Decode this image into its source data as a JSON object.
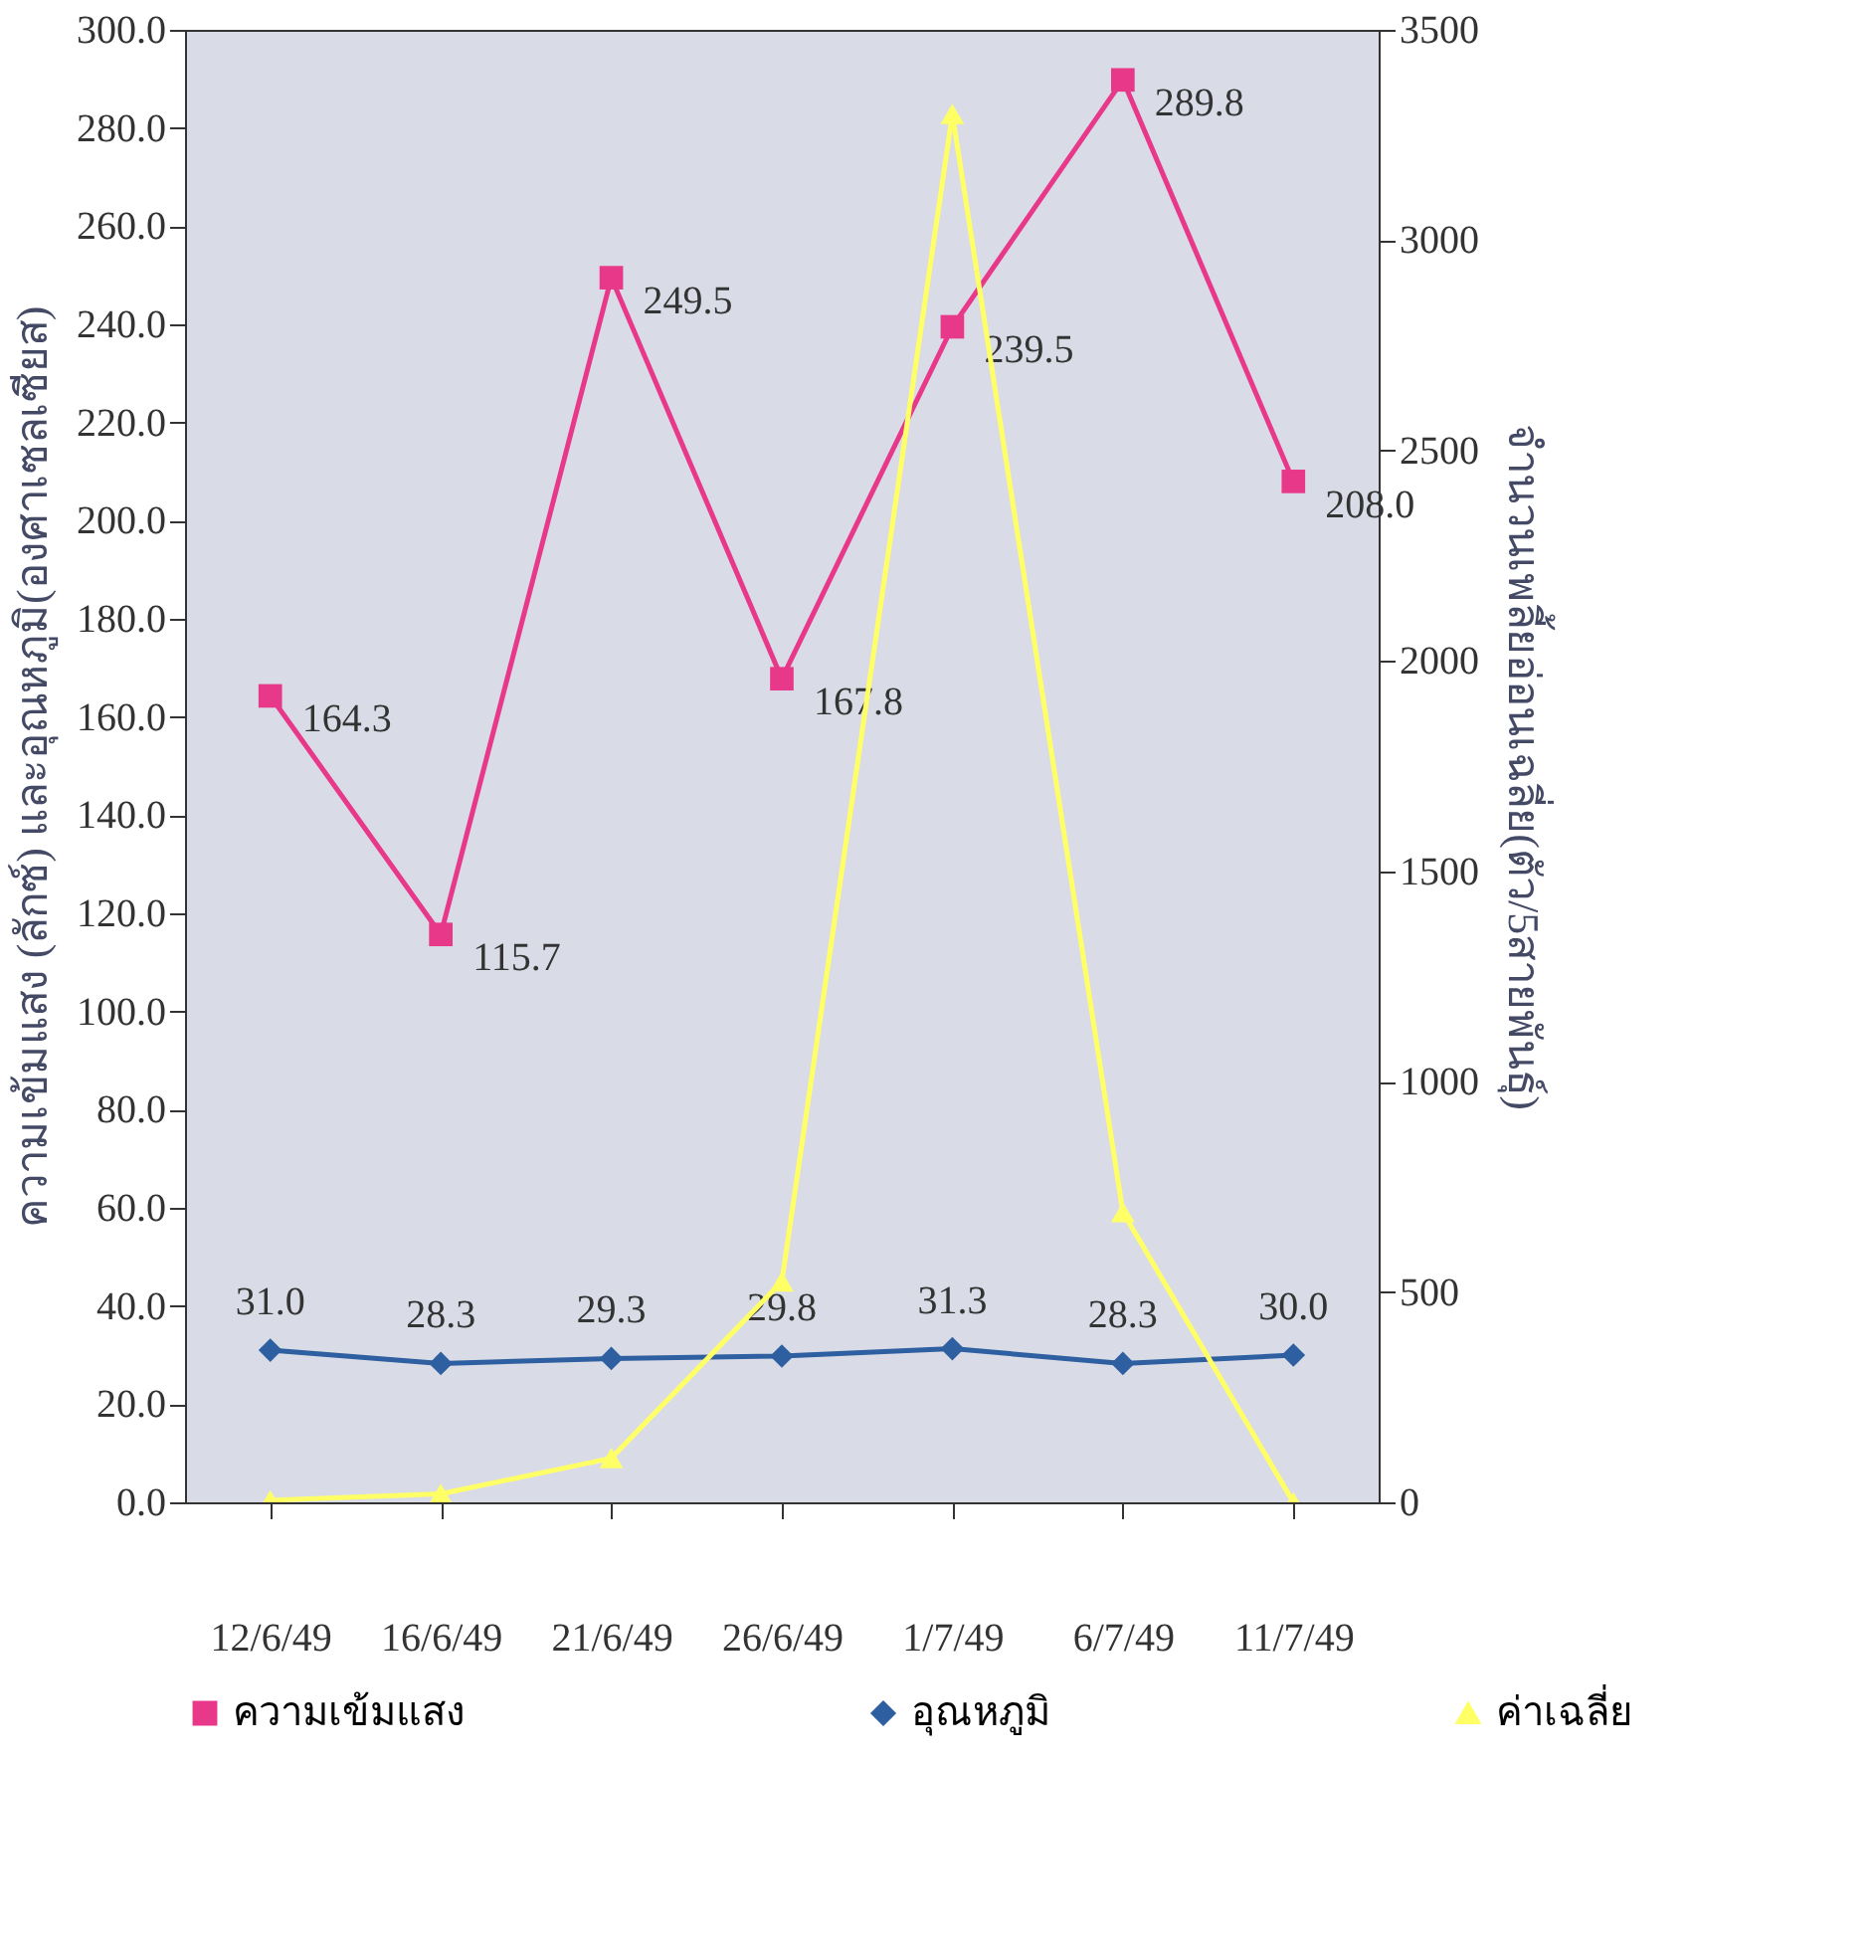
{
  "chart_data": {
    "type": "line",
    "categories": [
      "12/6/49",
      "16/6/49",
      "21/6/49",
      "26/6/49",
      "1/7/49",
      "6/7/49",
      "11/7/49"
    ],
    "ylabel": "ความเข้มแสง (ลักซ์) และอุณหภูมิ(องศาเซลเซียส)",
    "y2label": "จำนวนเพลี้ยอ่อนเฉลี่ย(ตัว/5สายพันธุ์)",
    "ylim": [
      0,
      300
    ],
    "yticks": [
      {
        "value": 0,
        "label": "0.0"
      },
      {
        "value": 20,
        "label": "20.0"
      },
      {
        "value": 40,
        "label": "40.0"
      },
      {
        "value": 60,
        "label": "60.0"
      },
      {
        "value": 80,
        "label": "80.0"
      },
      {
        "value": 100,
        "label": "100.0"
      },
      {
        "value": 120,
        "label": "120.0"
      },
      {
        "value": 140,
        "label": "140.0"
      },
      {
        "value": 160,
        "label": "160.0"
      },
      {
        "value": 180,
        "label": "180.0"
      },
      {
        "value": 200,
        "label": "200.0"
      },
      {
        "value": 220,
        "label": "220.0"
      },
      {
        "value": 240,
        "label": "240.0"
      },
      {
        "value": 260,
        "label": "260.0"
      },
      {
        "value": 280,
        "label": "280.0"
      },
      {
        "value": 300,
        "label": "300.0"
      }
    ],
    "y2lim": [
      0,
      3500
    ],
    "y2ticks": [
      0,
      500,
      1000,
      1500,
      2000,
      2500,
      3000,
      3500
    ],
    "grid": false,
    "legend": "bottom",
    "series": [
      {
        "name": "ความเข้มแสง",
        "color": "#e8388a",
        "marker": "square",
        "values": [
          164.3,
          115.7,
          249.5,
          167.8,
          239.5,
          289.8,
          208.0
        ],
        "value_labels": [
          "164.3",
          "115.7",
          "249.5",
          "167.8",
          "239.5",
          "289.8",
          "208.0"
        ]
      },
      {
        "name": "อุณหภูมิ",
        "color": "#2e5fa0",
        "marker": "diamond",
        "values": [
          31.0,
          28.3,
          29.3,
          29.8,
          31.3,
          28.3,
          30.0
        ],
        "value_labels": [
          "31.0",
          "28.3",
          "29.3",
          "29.8",
          "31.3",
          "28.3",
          "30.0"
        ]
      },
      {
        "name": "ค่าเฉลี่ย",
        "color": "#ffff66",
        "marker": "triangle",
        "axis": "y2",
        "values": [
          5,
          20,
          105,
          525,
          3300,
          690,
          0
        ]
      }
    ]
  }
}
